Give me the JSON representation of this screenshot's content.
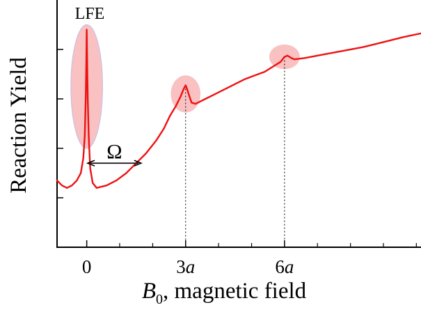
{
  "chart_data": {
    "type": "line",
    "title": "",
    "xlabel": {
      "symbol": "B",
      "subscript": "0",
      "rest": ", magnetic field"
    },
    "ylabel": "Reaction Yield",
    "xlim": [
      -0.3,
      3.38
    ],
    "ylim": [
      0,
      1
    ],
    "x_ticks": [
      {
        "value": 0,
        "number": "0",
        "italic": ""
      },
      {
        "value": 1,
        "number": "3",
        "italic": "a"
      },
      {
        "value": 2,
        "number": "6",
        "italic": "a"
      }
    ],
    "x_minor_ticks": [
      0.333,
      0.667,
      1.333,
      1.667,
      2.333,
      2.667,
      3.0,
      3.333
    ],
    "y_ticks": [
      0.2,
      0.4,
      0.6,
      0.8
    ],
    "series": [
      {
        "name": "reaction yield",
        "color": "#ee1111",
        "points": [
          [
            -0.3,
            0.27
          ],
          [
            -0.25,
            0.25
          ],
          [
            -0.2,
            0.24
          ],
          [
            -0.15,
            0.25
          ],
          [
            -0.1,
            0.27
          ],
          [
            -0.06,
            0.3
          ],
          [
            -0.035,
            0.36
          ],
          [
            -0.02,
            0.45
          ],
          [
            -0.01,
            0.6
          ],
          [
            -0.004,
            0.76
          ],
          [
            0.0,
            0.88
          ],
          [
            0.004,
            0.76
          ],
          [
            0.01,
            0.6
          ],
          [
            0.02,
            0.45
          ],
          [
            0.035,
            0.32
          ],
          [
            0.06,
            0.26
          ],
          [
            0.1,
            0.24
          ],
          [
            0.2,
            0.25
          ],
          [
            0.3,
            0.27
          ],
          [
            0.4,
            0.3
          ],
          [
            0.5,
            0.34
          ],
          [
            0.6,
            0.38
          ],
          [
            0.7,
            0.43
          ],
          [
            0.78,
            0.48
          ],
          [
            0.84,
            0.53
          ],
          [
            0.9,
            0.57
          ],
          [
            0.95,
            0.61
          ],
          [
            0.98,
            0.64
          ],
          [
            1.0,
            0.655
          ],
          [
            1.015,
            0.64
          ],
          [
            1.03,
            0.62
          ],
          [
            1.06,
            0.585
          ],
          [
            1.1,
            0.58
          ],
          [
            1.2,
            0.6
          ],
          [
            1.3,
            0.62
          ],
          [
            1.4,
            0.64
          ],
          [
            1.5,
            0.66
          ],
          [
            1.6,
            0.68
          ],
          [
            1.7,
            0.695
          ],
          [
            1.8,
            0.71
          ],
          [
            1.9,
            0.735
          ],
          [
            1.96,
            0.75
          ],
          [
            2.0,
            0.77
          ],
          [
            2.03,
            0.775
          ],
          [
            2.07,
            0.765
          ],
          [
            2.1,
            0.76
          ],
          [
            2.2,
            0.765
          ],
          [
            2.4,
            0.78
          ],
          [
            2.6,
            0.795
          ],
          [
            2.8,
            0.81
          ],
          [
            3.0,
            0.83
          ],
          [
            3.2,
            0.85
          ],
          [
            3.38,
            0.865
          ]
        ]
      }
    ],
    "highlights": [
      {
        "x": 0,
        "y": 0.65,
        "rx": 0.16,
        "ry": 0.25,
        "label": "LFE"
      },
      {
        "x": 1,
        "y": 0.62,
        "rx": 0.15,
        "ry": 0.075,
        "label": ""
      },
      {
        "x": 2,
        "y": 0.77,
        "rx": 0.155,
        "ry": 0.05,
        "label": ""
      }
    ],
    "vertical_guides": [
      1,
      2
    ],
    "annotations": [
      {
        "label": "Ω",
        "type": "double-arrow",
        "x_from": 0.01,
        "x_to": 0.55,
        "y": 0.34
      }
    ]
  },
  "colors": {
    "curve": "#ee1111",
    "highlight": "#f6a6a6",
    "highlight_edge": "#c8c0e8",
    "axis": "#000000"
  }
}
